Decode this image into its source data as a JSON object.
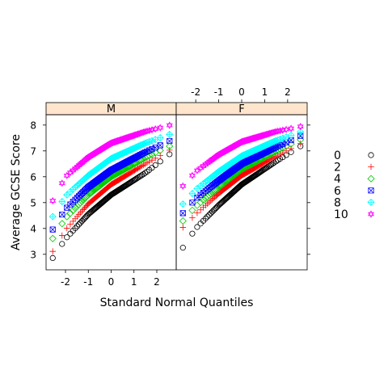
{
  "chart_data": {
    "type": "scatter",
    "title": "",
    "xlabel": "Standard Normal Quantiles",
    "ylabel": "Average GCSE Score",
    "xlim": [
      -2.85,
      2.85
    ],
    "ylim": [
      2.4,
      8.4
    ],
    "x_ticks": [
      "-2",
      "-1",
      "0",
      "1",
      "2"
    ],
    "y_ticks": [
      "3",
      "4",
      "5",
      "6",
      "7",
      "8"
    ],
    "grid": false,
    "legend_position": "right",
    "panels": [
      "M",
      "F"
    ],
    "series": [
      {
        "name": "0",
        "color": "#000000",
        "marker": "circle",
        "quantiles": {
          "M": [
            2.8,
            3.6,
            4.55,
            5.3,
            6.15,
            6.9
          ],
          "F": [
            3.2,
            4.0,
            4.9,
            5.7,
            6.6,
            7.2
          ]
        }
      },
      {
        "name": "2",
        "color": "#ff0000",
        "marker": "plus",
        "quantiles": {
          "M": [
            3.05,
            3.95,
            4.95,
            5.7,
            6.5,
            7.05
          ],
          "F": [
            4.0,
            4.55,
            5.35,
            6.05,
            6.8,
            7.3
          ]
        }
      },
      {
        "name": "4",
        "color": "#00cc00",
        "marker": "diamond",
        "quantiles": {
          "M": [
            3.55,
            4.4,
            5.3,
            6.0,
            6.75,
            7.2
          ],
          "F": [
            4.25,
            4.85,
            5.6,
            6.3,
            7.0,
            7.45
          ]
        }
      },
      {
        "name": "6",
        "color": "#0000ff",
        "marker": "square-x",
        "quantiles": {
          "M": [
            3.9,
            4.75,
            5.6,
            6.25,
            6.95,
            7.4
          ],
          "F": [
            4.55,
            5.15,
            5.85,
            6.5,
            7.15,
            7.6
          ]
        }
      },
      {
        "name": "8",
        "color": "#00ffff",
        "marker": "diamond-plus",
        "quantiles": {
          "M": [
            4.4,
            5.25,
            6.05,
            6.7,
            7.3,
            7.65
          ],
          "F": [
            4.9,
            5.5,
            6.2,
            6.8,
            7.4,
            7.75
          ]
        }
      },
      {
        "name": "10",
        "color": "#ff00ff",
        "marker": "star",
        "quantiles": {
          "M": [
            5.0,
            6.0,
            6.75,
            7.3,
            7.75,
            8.0
          ],
          "F": [
            5.6,
            6.2,
            6.85,
            7.35,
            7.75,
            7.95
          ]
        }
      }
    ]
  }
}
